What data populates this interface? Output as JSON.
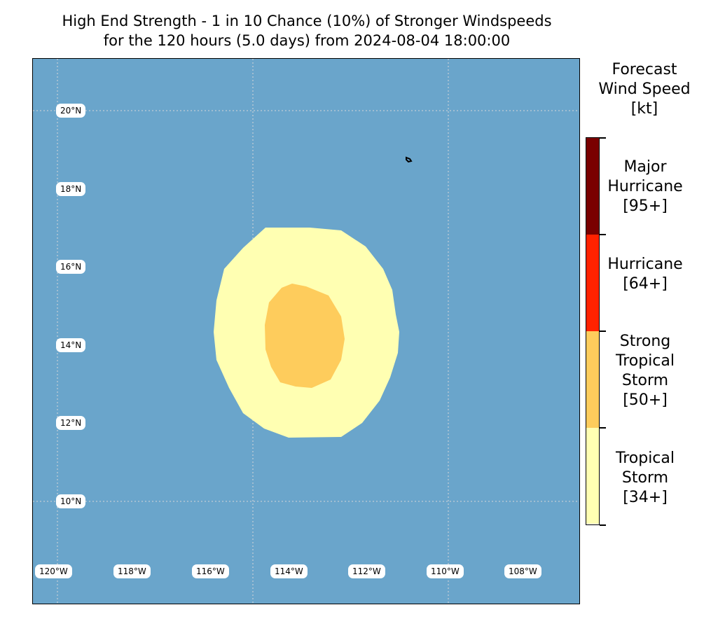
{
  "figure": {
    "title_line1": "High End Strength - 1 in 10 Chance (10%) of Stronger Windspeeds",
    "title_line2": "for the 120 hours (5.0 days) from 2024-08-04 18:00:00"
  },
  "map": {
    "ocean_color": "#6aa5cb",
    "lat_labels": [
      "20°N",
      "18°N",
      "16°N",
      "14°N",
      "12°N",
      "10°N"
    ],
    "lon_labels": [
      "120°W",
      "118°W",
      "116°W",
      "114°W",
      "112°W",
      "110°W",
      "108°W"
    ],
    "zones": [
      {
        "category": "Tropical Storm [34+]",
        "color": "#ffffb2"
      },
      {
        "category": "Strong Tropical Storm [50+]",
        "color": "#fecc5c"
      }
    ]
  },
  "colorbar": {
    "title": "Forecast\nWind Speed\n[kt]",
    "categories": [
      {
        "label": "Major\nHurricane\n[95+]",
        "color": "#7a0000"
      },
      {
        "label": "Hurricane\n[64+]",
        "color": "#ff2200"
      },
      {
        "label": "Strong\nTropical\nStorm\n[50+]",
        "color": "#fecc5c"
      },
      {
        "label": "Tropical\nStorm\n[34+]",
        "color": "#ffffb2"
      }
    ]
  }
}
